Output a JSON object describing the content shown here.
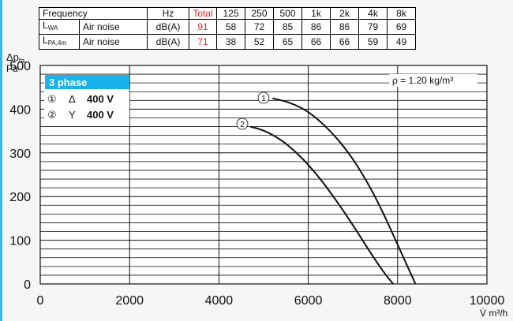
{
  "table": {
    "header": [
      "Frequency",
      "Hz",
      "Total",
      "125",
      "250",
      "500",
      "1k",
      "2k",
      "4k",
      "8k"
    ],
    "rows": [
      {
        "sym": "L",
        "sub": "WA",
        "desc": "Air noise",
        "unit": "dB(A)",
        "total": "91",
        "bands": [
          "58",
          "72",
          "85",
          "86",
          "86",
          "79",
          "69"
        ]
      },
      {
        "sym": "L",
        "sub": "PA,4m",
        "desc": "Air noise",
        "unit": "dB(A)",
        "total": "71",
        "bands": [
          "38",
          "52",
          "65",
          "66",
          "66",
          "59",
          "49"
        ]
      }
    ]
  },
  "colors": {
    "accent": "#1ab2ea",
    "frame": "#38b6e8",
    "total_red": "#e8262c"
  },
  "chart_data": {
    "type": "line",
    "ylabel_line1": "Δp",
    "ylabel_sub": "fa",
    "ylabel_line2": "Pa",
    "xlabel": "V̇ m³/h",
    "xlim": [
      0,
      10000
    ],
    "ylim": [
      0,
      500
    ],
    "x_ticks": [
      0,
      2000,
      4000,
      6000,
      8000,
      10000
    ],
    "y_ticks": [
      0,
      100,
      200,
      300,
      400,
      500
    ],
    "grid": true,
    "density_label": "ρ = 1.20 kg/m³",
    "legend": {
      "title": "3 phase",
      "items": [
        {
          "marker": "①",
          "conn": "Δ",
          "volt": "400 V"
        },
        {
          "marker": "②",
          "conn": "Y",
          "volt": "400 V"
        }
      ]
    },
    "series": [
      {
        "marker": "①",
        "x": [
          5200,
          5600,
          6000,
          6400,
          6800,
          7200,
          7600,
          8000,
          8200,
          8400
        ],
        "y": [
          425,
          415,
          395,
          360,
          315,
          255,
          180,
          90,
          45,
          0
        ]
      },
      {
        "marker": "②",
        "x": [
          4700,
          5000,
          5400,
          5800,
          6200,
          6600,
          7000,
          7400,
          7700,
          7900
        ],
        "y": [
          360,
          352,
          330,
          295,
          250,
          195,
          135,
          70,
          25,
          0
        ]
      }
    ]
  }
}
